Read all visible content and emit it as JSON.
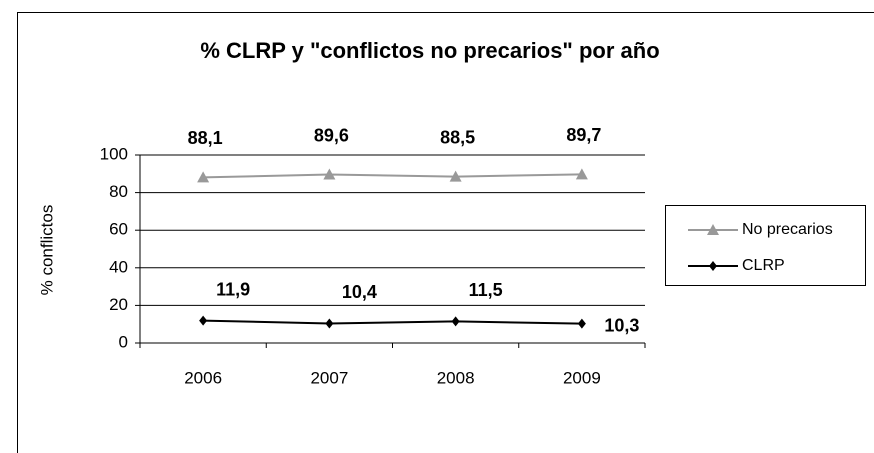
{
  "chart_data": {
    "type": "line",
    "title": "% CLRP y \"conflictos no precarios\" por año",
    "y_label": "% conflictos",
    "categories": [
      "2006",
      "2007",
      "2008",
      "2009"
    ],
    "series": [
      {
        "name": "No precarios",
        "color": "#999999",
        "marker": "triangle",
        "values": [
          88.1,
          89.6,
          88.5,
          89.7
        ],
        "value_labels": [
          "88,1",
          "89,6",
          "88,5",
          "89,7"
        ]
      },
      {
        "name": "CLRP",
        "color": "#000000",
        "marker": "diamond",
        "values": [
          11.9,
          10.4,
          11.5,
          10.3
        ],
        "value_labels": [
          "11,9",
          "10,4",
          "11,5",
          "10,3"
        ]
      }
    ],
    "ylim": [
      0,
      100
    ],
    "yticks": [
      0,
      20,
      40,
      60,
      80,
      100
    ],
    "grid": true,
    "legend": "right"
  }
}
